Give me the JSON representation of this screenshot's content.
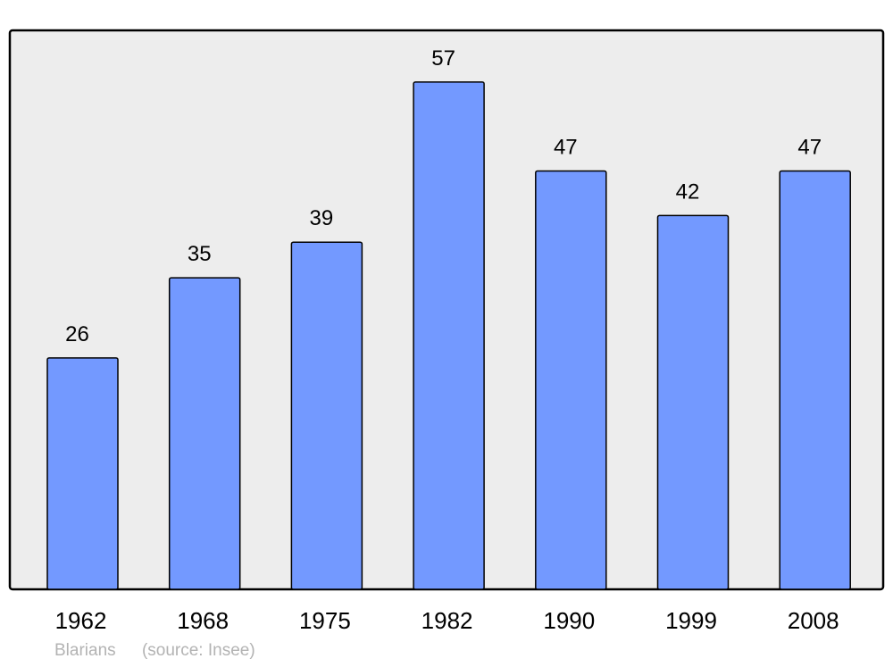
{
  "chart_data": {
    "type": "bar",
    "categories": [
      "1962",
      "1968",
      "1975",
      "1982",
      "1990",
      "1999",
      "2008"
    ],
    "values": [
      26,
      35,
      39,
      57,
      47,
      42,
      47
    ],
    "title": "",
    "xlabel": "",
    "ylabel": "",
    "ylim": [
      0,
      62.8
    ],
    "grid": false,
    "data_labels": true,
    "colors": {
      "bar": "#7399ff",
      "plot_background": "#ededed",
      "border": "#000000"
    }
  },
  "footer": {
    "place": "Blarians",
    "source": "(source: Insee)"
  }
}
